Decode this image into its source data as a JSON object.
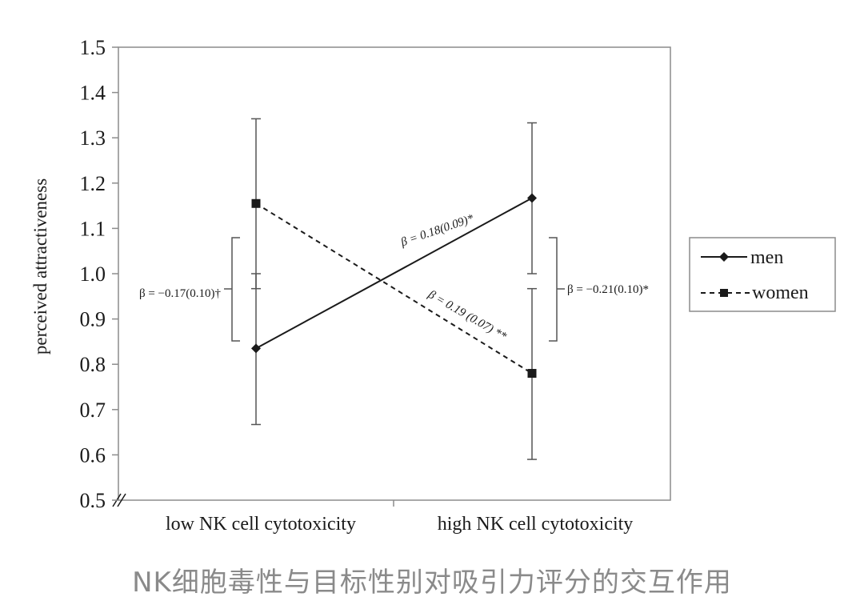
{
  "chart_data": {
    "type": "line",
    "categories": [
      "low NK cell cytotoxicity",
      "high NK cell cytotoxicity"
    ],
    "ylabel": "perceived attractiveness",
    "ylim": [
      0.5,
      1.5
    ],
    "yticks": [
      "0.5",
      "0.6",
      "0.7",
      "0.8",
      "0.9",
      "1.0",
      "1.1",
      "1.2",
      "1.3",
      "1.4",
      "1.5"
    ],
    "grid": false,
    "legend_position": "right",
    "series": [
      {
        "name": "men",
        "values": [
          0.835,
          1.167
        ],
        "error_low": [
          0.667,
          1.0
        ],
        "error_high": [
          1.0,
          1.333
        ],
        "line": "solid",
        "marker": "diamond"
      },
      {
        "name": "women",
        "values": [
          1.155,
          0.78
        ],
        "error_low": [
          0.967,
          0.59
        ],
        "error_high": [
          1.342,
          0.967
        ],
        "line": "dashed",
        "marker": "square"
      }
    ],
    "annotations": {
      "men_slope": "β = 0.18(0.09)*",
      "women_slope": "β = 0.19 (0.07) **",
      "low_diff": "β = −0.17(0.10)†",
      "high_diff": "β = −0.21(0.10)*"
    },
    "colors": {
      "lines": "#1a1a1a",
      "frame": "#8c8c8c"
    }
  },
  "caption": "NK细胞毒性与目标性别对吸引力评分的交互作用"
}
